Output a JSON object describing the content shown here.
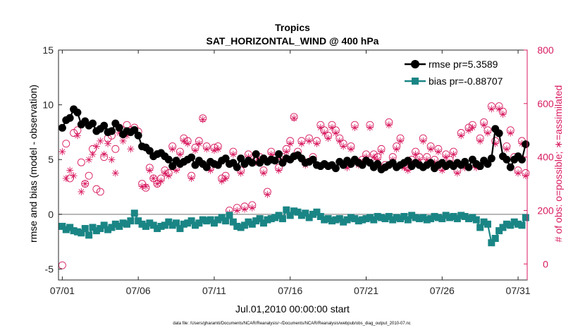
{
  "chart_data": {
    "type": "line",
    "title": "Tropics",
    "subtitle": "SAT_HORIZONTAL_WIND @ 400 hPa",
    "xlabel": "Jul.01,2010 00:00:00 start",
    "ylabel": "rmse and bias (model - observation)",
    "y2label": "# of obs: o=possible; ∗=assimilated",
    "footnote": "data file: /Users/gharamti/Documents/NCAR/Reanalysis/~/Documents/NCAR/Reanalysis/webpub/obs_diag_output_2010-07.nc",
    "xlim": [
      0.75,
      31.6
    ],
    "ylim": [
      -6,
      15
    ],
    "y2lim": [
      -60,
      800
    ],
    "x_ticks": [
      1,
      6,
      11,
      16,
      21,
      26,
      31
    ],
    "x_tick_labels": [
      "07/01",
      "07/06",
      "07/11",
      "07/16",
      "07/21",
      "07/26",
      "07/31"
    ],
    "y_ticks": [
      -5,
      0,
      5,
      10,
      15
    ],
    "y_tick_labels": [
      "-5",
      "0",
      "5",
      "10",
      "15"
    ],
    "y2_ticks": [
      0,
      200,
      400,
      600,
      800
    ],
    "y2_tick_labels": [
      "0",
      "200",
      "400",
      "600",
      "800"
    ],
    "zero_line": 0,
    "grid": false,
    "legend_position": "top-right",
    "colors": {
      "rmse": "#000000",
      "bias": "#1a8585",
      "obs": "#d81b60",
      "zero_line": "#a0a0a0"
    },
    "series": [
      {
        "name": "rmse pr=5.3589",
        "axis": "left",
        "marker": "circle",
        "x": [
          1.0,
          1.25,
          1.5,
          1.75,
          2.0,
          2.25,
          2.5,
          2.75,
          3.0,
          3.25,
          3.5,
          3.75,
          4.0,
          4.25,
          4.5,
          4.75,
          5.0,
          5.25,
          5.5,
          5.75,
          6.0,
          6.25,
          6.5,
          6.75,
          7.0,
          7.25,
          7.5,
          7.75,
          8.0,
          8.25,
          8.5,
          8.75,
          9.0,
          9.25,
          9.5,
          9.75,
          10.0,
          10.25,
          10.5,
          10.75,
          11.0,
          11.25,
          11.5,
          11.75,
          12.0,
          12.25,
          12.5,
          12.75,
          13.0,
          13.25,
          13.5,
          13.75,
          14.0,
          14.25,
          14.5,
          14.75,
          15.0,
          15.25,
          15.5,
          15.75,
          16.0,
          16.25,
          16.5,
          16.75,
          17.0,
          17.25,
          17.5,
          17.75,
          18.0,
          18.25,
          18.5,
          18.75,
          19.0,
          19.25,
          19.5,
          19.75,
          20.0,
          20.25,
          20.5,
          20.75,
          21.0,
          21.25,
          21.5,
          21.75,
          22.0,
          22.25,
          22.5,
          22.75,
          23.0,
          23.25,
          23.5,
          23.75,
          24.0,
          24.25,
          24.5,
          24.75,
          25.0,
          25.25,
          25.5,
          25.75,
          26.0,
          26.25,
          26.5,
          26.75,
          27.0,
          27.25,
          27.5,
          27.75,
          28.0,
          28.25,
          28.5,
          28.75,
          29.0,
          29.25,
          29.5,
          29.75,
          30.0,
          30.25,
          30.5,
          30.75,
          31.0,
          31.25
        ],
        "values": [
          7.9,
          8.6,
          8.8,
          9.6,
          9.3,
          8.2,
          8.5,
          8.1,
          8.3,
          7.6,
          7.8,
          8.1,
          7.5,
          7.6,
          8.3,
          7.9,
          7.3,
          7.6,
          7.5,
          7.7,
          7.2,
          6.2,
          6.1,
          5.8,
          5.3,
          5.5,
          5.6,
          5.3,
          5.0,
          4.4,
          4.9,
          4.6,
          4.8,
          5.0,
          5.2,
          4.5,
          4.9,
          4.6,
          4.3,
          4.8,
          4.6,
          4.5,
          4.9,
          5.1,
          4.6,
          4.7,
          4.3,
          5.1,
          4.6,
          4.9,
          4.7,
          5.5,
          4.7,
          5.1,
          4.8,
          5.0,
          4.9,
          5.5,
          4.7,
          5.1,
          5.0,
          5.3,
          5.4,
          5.1,
          4.7,
          4.8,
          5.0,
          4.5,
          4.4,
          4.6,
          4.4,
          4.5,
          4.2,
          4.8,
          4.5,
          4.9,
          4.6,
          5.0,
          4.7,
          4.5,
          4.9,
          4.7,
          4.3,
          4.6,
          4.1,
          4.3,
          4.5,
          4.7,
          4.3,
          4.5,
          4.7,
          4.9,
          4.4,
          4.7,
          4.5,
          4.3,
          4.5,
          4.7,
          4.2,
          4.5,
          4.7,
          4.4,
          4.6,
          4.4,
          4.7,
          4.5,
          4.8,
          4.3,
          5.0,
          4.6,
          4.4,
          4.9,
          4.6,
          5.1,
          7.8,
          7.4,
          5.3,
          5.0,
          4.3,
          5.0,
          5.3,
          5.0
        ],
        "last": [
          31.5,
          6.4
        ]
      },
      {
        "name": "bias pr=-0.88707",
        "axis": "left",
        "marker": "square",
        "x": [
          1.0,
          1.25,
          1.5,
          1.75,
          2.0,
          2.25,
          2.5,
          2.75,
          3.0,
          3.25,
          3.5,
          3.75,
          4.0,
          4.25,
          4.5,
          4.75,
          5.0,
          5.25,
          5.5,
          5.75,
          6.0,
          6.25,
          6.5,
          6.75,
          7.0,
          7.25,
          7.5,
          7.75,
          8.0,
          8.25,
          8.5,
          8.75,
          9.0,
          9.25,
          9.5,
          9.75,
          10.0,
          10.25,
          10.5,
          10.75,
          11.0,
          11.25,
          11.5,
          11.75,
          12.0,
          12.25,
          12.5,
          12.75,
          13.0,
          13.25,
          13.5,
          13.75,
          14.0,
          14.25,
          14.5,
          14.75,
          15.0,
          15.25,
          15.5,
          15.75,
          16.0,
          16.25,
          16.5,
          16.75,
          17.0,
          17.25,
          17.5,
          17.75,
          18.0,
          18.25,
          18.5,
          18.75,
          19.0,
          19.25,
          19.5,
          19.75,
          20.0,
          20.25,
          20.5,
          20.75,
          21.0,
          21.25,
          21.5,
          21.75,
          22.0,
          22.25,
          22.5,
          22.75,
          23.0,
          23.25,
          23.5,
          23.75,
          24.0,
          24.25,
          24.5,
          24.75,
          25.0,
          25.25,
          25.5,
          25.75,
          26.0,
          26.25,
          26.5,
          26.75,
          27.0,
          27.25,
          27.5,
          27.75,
          28.0,
          28.25,
          28.5,
          28.75,
          29.0,
          29.25,
          29.5,
          29.75,
          30.0,
          30.25,
          30.5,
          30.75,
          31.0,
          31.25
        ],
        "values": [
          -1.1,
          -1.4,
          -1.2,
          -1.5,
          -1.6,
          -1.7,
          -1.3,
          -1.9,
          -1.2,
          -1.5,
          -1.3,
          -1.0,
          -1.4,
          -1.2,
          -0.9,
          -1.1,
          -0.8,
          -0.9,
          -0.6,
          0.1,
          -0.6,
          -0.9,
          -1.1,
          -0.8,
          -1.0,
          -1.3,
          -1.1,
          -1.0,
          -0.7,
          -1.0,
          -0.8,
          -1.3,
          -0.9,
          -0.8,
          -0.6,
          -1.0,
          -0.8,
          -0.5,
          -0.6,
          -0.5,
          -0.8,
          -0.5,
          -0.3,
          -0.6,
          -0.1,
          -0.7,
          -1.1,
          -1.2,
          -1.0,
          -0.7,
          -0.9,
          -0.6,
          -0.4,
          -0.8,
          -0.5,
          -0.4,
          -0.3,
          -0.1,
          -0.4,
          0.4,
          -0.1,
          0.3,
          0.2,
          -0.1,
          0.1,
          -0.3,
          0.0,
          0.2,
          -0.2,
          -0.5,
          -0.4,
          -0.6,
          -0.5,
          -0.4,
          -0.7,
          -0.5,
          -0.3,
          -0.4,
          -0.6,
          -0.5,
          -0.4,
          -0.3,
          -0.5,
          -0.2,
          -0.3,
          -0.4,
          -0.2,
          -0.5,
          -0.3,
          -0.4,
          -0.2,
          -0.5,
          -0.1,
          -0.3,
          -0.4,
          -0.3,
          -0.5,
          -0.4,
          -0.2,
          -0.3,
          -0.4,
          -0.1,
          -0.3,
          -0.2,
          -0.4,
          -0.1,
          -0.2,
          -0.4,
          -0.3,
          -0.5,
          -1.2,
          -0.7,
          -0.9,
          -2.6,
          -2.2,
          -1.5,
          -1.2,
          -0.9,
          -1.0,
          -0.7,
          -0.9,
          -1.0
        ],
        "last": [
          31.5,
          -0.3
        ]
      },
      {
        "name": "# of obs possible",
        "axis": "right",
        "marker": "open-circle",
        "x": [
          1.0,
          1.25,
          1.5,
          1.75,
          2.0,
          2.25,
          2.5,
          2.75,
          3.0,
          3.25,
          3.5,
          3.75,
          4.0,
          4.25,
          4.5,
          4.75,
          5.0,
          5.25,
          5.5,
          5.75,
          6.0,
          6.25,
          6.5,
          6.75,
          7.0,
          7.25,
          7.5,
          7.75,
          8.0,
          8.25,
          8.5,
          8.75,
          9.0,
          9.25,
          9.5,
          9.75,
          10.0,
          10.25,
          10.5,
          10.75,
          11.0,
          11.25,
          11.5,
          11.75,
          12.0,
          12.25,
          12.5,
          12.75,
          13.0,
          13.25,
          13.5,
          13.75,
          14.0,
          14.25,
          14.5,
          14.75,
          15.0,
          15.25,
          15.5,
          15.75,
          16.0,
          16.25,
          16.5,
          16.75,
          17.0,
          17.25,
          17.5,
          17.75,
          18.0,
          18.25,
          18.5,
          18.75,
          19.0,
          19.25,
          19.5,
          19.75,
          20.0,
          20.25,
          20.5,
          20.75,
          21.0,
          21.25,
          21.5,
          21.75,
          22.0,
          22.25,
          22.5,
          22.75,
          23.0,
          23.25,
          23.5,
          23.75,
          24.0,
          24.25,
          24.5,
          24.75,
          25.0,
          25.25,
          25.5,
          25.75,
          26.0,
          26.25,
          26.5,
          26.75,
          27.0,
          27.25,
          27.5,
          27.75,
          28.0,
          28.25,
          28.5,
          28.75,
          29.0,
          29.25,
          29.5,
          29.75,
          30.0,
          30.25,
          30.5,
          30.75,
          31.0,
          31.25
        ],
        "values": [
          -5,
          450,
          320,
          490,
          500,
          380,
          300,
          330,
          430,
          280,
          270,
          400,
          470,
          480,
          430,
          510,
          500,
          520,
          500,
          510,
          495,
          300,
          285,
          360,
          320,
          300,
          320,
          350,
          340,
          440,
          360,
          420,
          470,
          460,
          330,
          435,
          460,
          545,
          440,
          360,
          435,
          440,
          320,
          330,
          200,
          420,
          210,
          350,
          215,
          410,
          220,
          390,
          400,
          350,
          270,
          420,
          395,
          360,
          400,
          430,
          460,
          550,
          420,
          460,
          380,
          470,
          400,
          460,
          520,
          500,
          480,
          520,
          500,
          470,
          450,
          370,
          440,
          520,
          380,
          390,
          410,
          520,
          410,
          400,
          430,
          370,
          530,
          400,
          440,
          470,
          370,
          360,
          390,
          420,
          400,
          470,
          400,
          440,
          390,
          430,
          360,
          410,
          390,
          420,
          350,
          490,
          370,
          510,
          520,
          370,
          470,
          530,
          500,
          590,
          460,
          590,
          570,
          440,
          500,
          400,
          350,
          460
        ],
        "last": [
          31.5,
          340
        ]
      },
      {
        "name": "# of obs assimilated",
        "axis": "right",
        "marker": "asterisk",
        "x": [
          1.0,
          1.25,
          1.5,
          1.75,
          2.0,
          2.25,
          2.5,
          2.75,
          3.0,
          3.25,
          3.5,
          3.75,
          4.0,
          4.25,
          4.5,
          4.75,
          5.0,
          5.25,
          5.5,
          5.75,
          6.0,
          6.25,
          6.5,
          6.75,
          7.0,
          7.25,
          7.5,
          7.75,
          8.0,
          8.25,
          8.5,
          8.75,
          9.0,
          9.25,
          9.5,
          9.75,
          10.0,
          10.25,
          10.5,
          10.75,
          11.0,
          11.25,
          11.5,
          11.75,
          12.0,
          12.25,
          12.5,
          12.75,
          13.0,
          13.25,
          13.5,
          13.75,
          14.0,
          14.25,
          14.5,
          14.75,
          15.0,
          15.25,
          15.5,
          15.75,
          16.0,
          16.25,
          16.5,
          16.75,
          17.0,
          17.25,
          17.5,
          17.75,
          18.0,
          18.25,
          18.5,
          18.75,
          19.0,
          19.25,
          19.5,
          19.75,
          20.0,
          20.25,
          20.5,
          20.75,
          21.0,
          21.25,
          21.5,
          21.75,
          22.0,
          22.25,
          22.5,
          22.75,
          23.0,
          23.25,
          23.5,
          23.75,
          24.0,
          24.25,
          24.5,
          24.75,
          25.0,
          25.25,
          25.5,
          25.75,
          26.0,
          26.25,
          26.5,
          26.75,
          27.0,
          27.25,
          27.5,
          27.75,
          28.0,
          28.25,
          28.5,
          28.75,
          29.0,
          29.25,
          29.5,
          29.75,
          30.0,
          30.25,
          30.5,
          30.75,
          31.0,
          31.25
        ],
        "values": [
          420,
          320,
          350,
          330,
          480,
          270,
          300,
          390,
          410,
          440,
          460,
          410,
          450,
          390,
          340,
          490,
          460,
          480,
          430,
          500,
          480,
          290,
          290,
          350,
          320,
          300,
          310,
          340,
          330,
          430,
          350,
          410,
          460,
          450,
          320,
          425,
          450,
          540,
          430,
          350,
          425,
          430,
          310,
          320,
          190,
          410,
          200,
          340,
          205,
          400,
          210,
          380,
          390,
          340,
          260,
          410,
          385,
          350,
          390,
          420,
          450,
          545,
          410,
          450,
          370,
          460,
          390,
          450,
          510,
          490,
          470,
          510,
          490,
          460,
          440,
          360,
          430,
          510,
          370,
          380,
          400,
          510,
          400,
          390,
          420,
          360,
          520,
          390,
          430,
          460,
          360,
          350,
          380,
          410,
          390,
          460,
          390,
          430,
          380,
          420,
          350,
          400,
          380,
          410,
          340,
          480,
          360,
          500,
          510,
          360,
          460,
          520,
          490,
          580,
          450,
          580,
          560,
          430,
          490,
          390,
          340,
          450
        ],
        "last": [
          31.5,
          330
        ]
      }
    ]
  }
}
